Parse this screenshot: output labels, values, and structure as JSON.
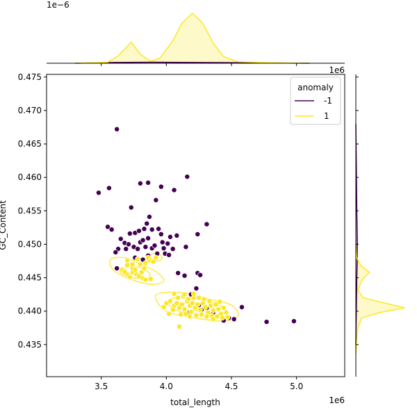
{
  "chart_data": {
    "type": "scatter",
    "title": "",
    "xlabel": "total_length",
    "ylabel": "GC_Content",
    "x_offset_label": "1e6",
    "y_offset_label": "1e6",
    "marginal_top_offset_label": "1e−6",
    "xlim": [
      3.08,
      5.37
    ],
    "ylim": [
      0.4302,
      0.4754
    ],
    "xticks": [
      "3.5",
      "4.0",
      "4.5",
      "5.0"
    ],
    "yticks": [
      "0.435",
      "0.440",
      "0.445",
      "0.450",
      "0.455",
      "0.460",
      "0.465",
      "0.470",
      "0.475"
    ],
    "legend": {
      "title": "anomaly",
      "position": "top-right",
      "entries": [
        "-1",
        "1"
      ]
    },
    "colors": {
      "-1": "#440154",
      "1": "#fde725"
    },
    "series": [
      {
        "name": "-1",
        "points": [
          [
            3.62,
            0.4672
          ],
          [
            4.16,
            0.4601
          ],
          [
            3.48,
            0.4577
          ],
          [
            3.56,
            0.4584
          ],
          [
            3.8,
            0.4591
          ],
          [
            3.86,
            0.4592
          ],
          [
            3.96,
            0.4586
          ],
          [
            4.06,
            0.4581
          ],
          [
            3.73,
            0.4555
          ],
          [
            3.92,
            0.4566
          ],
          [
            3.87,
            0.4541
          ],
          [
            3.85,
            0.4531
          ],
          [
            4.31,
            0.453
          ],
          [
            3.55,
            0.4526
          ],
          [
            3.58,
            0.4522
          ],
          [
            3.65,
            0.4508
          ],
          [
            3.68,
            0.4502
          ],
          [
            3.72,
            0.4516
          ],
          [
            3.76,
            0.4517
          ],
          [
            3.79,
            0.452
          ],
          [
            3.83,
            0.4523
          ],
          [
            3.89,
            0.4522
          ],
          [
            3.94,
            0.4523
          ],
          [
            3.96,
            0.4515
          ],
          [
            4.03,
            0.4511
          ],
          [
            4.08,
            0.4513
          ],
          [
            4.24,
            0.4515
          ],
          [
            3.69,
            0.4493
          ],
          [
            3.63,
            0.4493
          ],
          [
            3.61,
            0.4488
          ],
          [
            3.71,
            0.45
          ],
          [
            3.75,
            0.4496
          ],
          [
            3.78,
            0.4493
          ],
          [
            3.8,
            0.4503
          ],
          [
            3.82,
            0.4506
          ],
          [
            3.84,
            0.4496
          ],
          [
            3.86,
            0.4509
          ],
          [
            3.89,
            0.4494
          ],
          [
            3.91,
            0.4498
          ],
          [
            3.97,
            0.4503
          ],
          [
            3.98,
            0.4494
          ],
          [
            4.01,
            0.4501
          ],
          [
            4.05,
            0.4493
          ],
          [
            4.15,
            0.4496
          ],
          [
            3.93,
            0.4486
          ],
          [
            3.99,
            0.4486
          ],
          [
            3.86,
            0.4483
          ],
          [
            3.76,
            0.448
          ],
          [
            3.82,
            0.4477
          ],
          [
            4.02,
            0.4484
          ],
          [
            3.62,
            0.4464
          ],
          [
            4.09,
            0.4457
          ],
          [
            4.14,
            0.4453
          ],
          [
            4.24,
            0.4457
          ],
          [
            4.26,
            0.4454
          ],
          [
            4.19,
            0.4425
          ],
          [
            4.23,
            0.4434
          ],
          [
            4.58,
            0.4406
          ],
          [
            4.44,
            0.4386
          ],
          [
            4.48,
            0.439
          ],
          [
            4.52,
            0.4388
          ],
          [
            4.77,
            0.4384
          ],
          [
            4.98,
            0.4385
          ],
          [
            4.31,
            0.4405
          ],
          [
            4.36,
            0.4398
          ],
          [
            4.27,
            0.4402
          ],
          [
            4.18,
            0.4398
          ],
          [
            4.25,
            0.4409
          ]
        ]
      },
      {
        "name": "1",
        "points": [
          [
            3.7,
            0.4469
          ],
          [
            3.66,
            0.4462
          ],
          [
            3.7,
            0.4455
          ],
          [
            3.74,
            0.4458
          ],
          [
            3.72,
            0.4451
          ],
          [
            3.77,
            0.4455
          ],
          [
            3.79,
            0.4452
          ],
          [
            3.82,
            0.4449
          ],
          [
            3.84,
            0.4447
          ],
          [
            3.88,
            0.4448
          ],
          [
            3.74,
            0.4464
          ],
          [
            3.7,
            0.4476
          ],
          [
            3.74,
            0.447
          ],
          [
            3.8,
            0.447
          ],
          [
            3.84,
            0.4472
          ],
          [
            3.87,
            0.4476
          ],
          [
            3.9,
            0.4474
          ],
          [
            3.78,
            0.4478
          ],
          [
            3.83,
            0.4464
          ],
          [
            3.86,
            0.448
          ],
          [
            3.92,
            0.448
          ],
          [
            3.76,
            0.4462
          ],
          [
            3.81,
            0.4458
          ],
          [
            3.68,
            0.4459
          ],
          [
            4.0,
            0.4412
          ],
          [
            4.03,
            0.4415
          ],
          [
            4.06,
            0.4408
          ],
          [
            4.08,
            0.4412
          ],
          [
            4.1,
            0.4405
          ],
          [
            4.12,
            0.441
          ],
          [
            4.14,
            0.4403
          ],
          [
            4.16,
            0.4415
          ],
          [
            4.18,
            0.4408
          ],
          [
            4.2,
            0.4412
          ],
          [
            4.22,
            0.4405
          ],
          [
            4.24,
            0.441
          ],
          [
            4.26,
            0.4402
          ],
          [
            4.28,
            0.4412
          ],
          [
            4.3,
            0.4406
          ],
          [
            4.32,
            0.4398
          ],
          [
            4.34,
            0.4408
          ],
          [
            4.36,
            0.4401
          ],
          [
            4.38,
            0.441
          ],
          [
            4.4,
            0.4403
          ],
          [
            4.42,
            0.4396
          ],
          [
            4.44,
            0.4405
          ],
          [
            4.46,
            0.4398
          ],
          [
            4.05,
            0.4402
          ],
          [
            4.09,
            0.442
          ],
          [
            4.13,
            0.4422
          ],
          [
            4.17,
            0.4418
          ],
          [
            4.21,
            0.442
          ],
          [
            4.25,
            0.442
          ],
          [
            4.29,
            0.4418
          ],
          [
            4.11,
            0.4395
          ],
          [
            4.15,
            0.4396
          ],
          [
            4.19,
            0.4399
          ],
          [
            4.23,
            0.4394
          ],
          [
            4.27,
            0.4395
          ],
          [
            4.31,
            0.4392
          ],
          [
            4.35,
            0.4393
          ],
          [
            4.39,
            0.4392
          ],
          [
            4.43,
            0.439
          ],
          [
            4.47,
            0.4391
          ],
          [
            4.36,
            0.4388
          ],
          [
            4.06,
            0.4426
          ],
          [
            4.14,
            0.4425
          ],
          [
            4.21,
            0.4426
          ],
          [
            4.1,
            0.4377
          ],
          [
            3.98,
            0.4406
          ],
          [
            4.02,
            0.4396
          ],
          [
            4.33,
            0.4415
          ],
          [
            4.41,
            0.4414
          ],
          [
            4.18,
            0.4392
          ]
        ]
      }
    ],
    "contours": {
      "1": [
        [
          [
            3.57,
            0.4477
          ],
          [
            3.68,
            0.448
          ],
          [
            3.82,
            0.4469
          ],
          [
            3.93,
            0.4458
          ],
          [
            3.98,
            0.4445
          ],
          [
            3.89,
            0.444
          ],
          [
            3.75,
            0.4446
          ],
          [
            3.6,
            0.446
          ]
        ],
        [
          [
            3.66,
            0.4464
          ],
          [
            3.78,
            0.4466
          ],
          [
            3.87,
            0.4457
          ],
          [
            3.85,
            0.4449
          ],
          [
            3.74,
            0.445
          ],
          [
            3.65,
            0.4457
          ]
        ],
        [
          [
            3.88,
            0.4484
          ],
          [
            3.93,
            0.4487
          ],
          [
            3.97,
            0.4479
          ],
          [
            3.91,
            0.4474
          ]
        ],
        [
          [
            3.92,
            0.4424
          ],
          [
            4.12,
            0.4428
          ],
          [
            4.33,
            0.4418
          ],
          [
            4.5,
            0.4409
          ],
          [
            4.55,
            0.4393
          ],
          [
            4.44,
            0.4385
          ],
          [
            4.22,
            0.439
          ],
          [
            4.0,
            0.44
          ]
        ],
        [
          [
            4.03,
            0.4418
          ],
          [
            4.2,
            0.442
          ],
          [
            4.38,
            0.4411
          ],
          [
            4.46,
            0.44
          ],
          [
            4.33,
            0.4394
          ],
          [
            4.14,
            0.4398
          ],
          [
            4.04,
            0.4405
          ]
        ],
        [
          [
            4.13,
            0.4412
          ],
          [
            4.28,
            0.4411
          ],
          [
            4.33,
            0.4403
          ],
          [
            4.2,
            0.4401
          ],
          [
            4.12,
            0.4405
          ]
        ]
      ]
    },
    "marginal_x": {
      "1": [
        [
          3.3,
          0
        ],
        [
          3.55,
          0.02
        ],
        [
          3.63,
          0.15
        ],
        [
          3.73,
          0.42
        ],
        [
          3.8,
          0.18
        ],
        [
          3.88,
          0.04
        ],
        [
          3.95,
          0.1
        ],
        [
          4.05,
          0.45
        ],
        [
          4.12,
          0.8
        ],
        [
          4.2,
          1.0
        ],
        [
          4.28,
          0.8
        ],
        [
          4.36,
          0.4
        ],
        [
          4.44,
          0.13
        ],
        [
          4.55,
          0.03
        ],
        [
          4.8,
          0.01
        ],
        [
          5.1,
          0
        ]
      ],
      "-1": [
        [
          3.3,
          0
        ],
        [
          3.6,
          0.015
        ],
        [
          3.9,
          0.02
        ],
        [
          4.2,
          0.015
        ],
        [
          4.6,
          0.01
        ],
        [
          5.1,
          0
        ]
      ]
    },
    "marginal_y": {
      "1": [
        [
          0.4335,
          0
        ],
        [
          0.4375,
          0.04
        ],
        [
          0.439,
          0.12
        ],
        [
          0.4398,
          0.5
        ],
        [
          0.4405,
          1.0
        ],
        [
          0.4412,
          0.6
        ],
        [
          0.442,
          0.15
        ],
        [
          0.4432,
          0.04
        ],
        [
          0.4448,
          0.14
        ],
        [
          0.4458,
          0.28
        ],
        [
          0.4468,
          0.1
        ],
        [
          0.448,
          0.02
        ],
        [
          0.45,
          0
        ]
      ],
      "-1": [
        [
          0.435,
          0
        ],
        [
          0.445,
          0.02
        ],
        [
          0.448,
          0.03
        ],
        [
          0.451,
          0.03
        ],
        [
          0.455,
          0.02
        ],
        [
          0.462,
          0.01
        ],
        [
          0.468,
          0
        ]
      ]
    }
  }
}
